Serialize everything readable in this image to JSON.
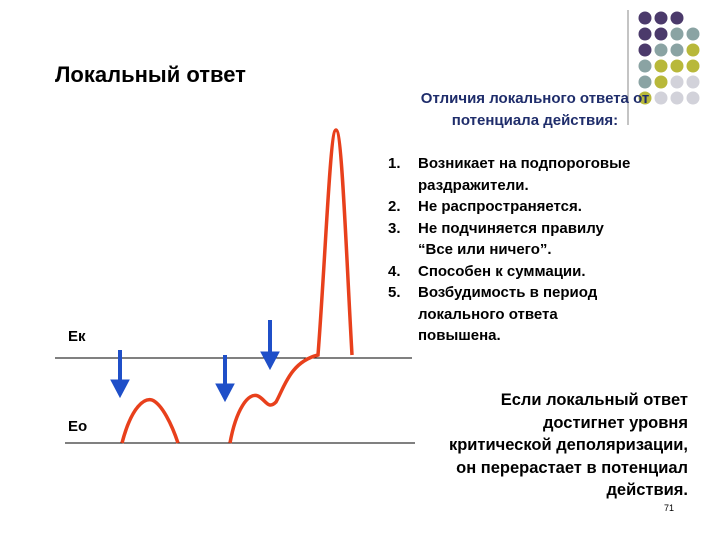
{
  "title": "Локальный ответ",
  "heading": {
    "line1": "Отличия локального ответа от",
    "line2": "потенциала действия:"
  },
  "list": [
    {
      "number": "1.",
      "lines": [
        "Возникает на подпороговые",
        "раздражители."
      ]
    },
    {
      "number": "2.",
      "lines": [
        "Не распространяется."
      ]
    },
    {
      "number": "3.",
      "lines": [
        " Не подчиняется правилу",
        "“Все или ничего”."
      ]
    },
    {
      "number": "4.",
      "lines": [
        "Способен к суммации."
      ]
    },
    {
      "number": "5.",
      "lines": [
        "Возбудимость в период",
        "локального ответа",
        "повышена."
      ]
    }
  ],
  "diagram": {
    "upper_level": "Ек",
    "lower_level": "Ео"
  },
  "note": {
    "lines": [
      "Если локальный ответ",
      "достигнет уровня",
      "критической деполяризации,",
      "он перерастает в потенциал",
      "действия."
    ]
  },
  "slide_number": "71"
}
